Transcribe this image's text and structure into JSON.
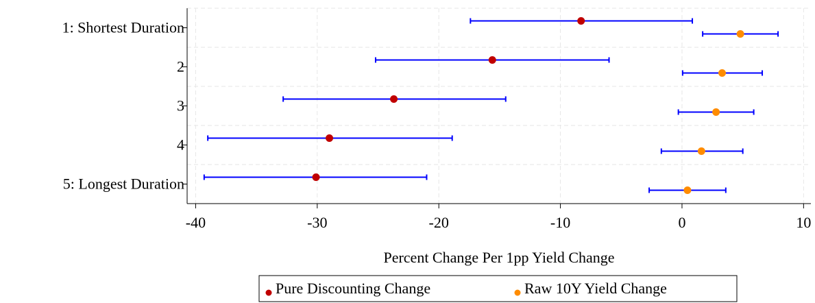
{
  "chart_data": {
    "type": "errorbar",
    "x_label": "Percent Change Per 1pp Yield Change",
    "categories": [
      "1: Shortest Duration",
      "2",
      "3",
      "4",
      "5: Longest Duration"
    ],
    "series": [
      {
        "name": "Pure Discounting Change",
        "color": "#c00000",
        "values": [
          -8.3,
          -15.6,
          -23.7,
          -29.0,
          -30.1
        ],
        "lower": [
          -17.4,
          -25.2,
          -32.8,
          -39.0,
          -39.3
        ],
        "upper": [
          0.85,
          -6.0,
          -14.5,
          -18.9,
          -21.0
        ]
      },
      {
        "name": "Raw 10Y Yield Change",
        "color": "#ff8c00",
        "values": [
          4.8,
          3.3,
          2.8,
          1.6,
          0.45
        ],
        "lower": [
          1.7,
          0.05,
          -0.3,
          -1.7,
          -2.7
        ],
        "upper": [
          7.9,
          6.6,
          5.9,
          5.0,
          3.6
        ]
      }
    ],
    "bar_color": "#0000ff",
    "xlim": [
      -40.7,
      10.6
    ],
    "xticks": [
      -40,
      -30,
      -20,
      -10,
      0,
      10
    ],
    "grid": true
  }
}
